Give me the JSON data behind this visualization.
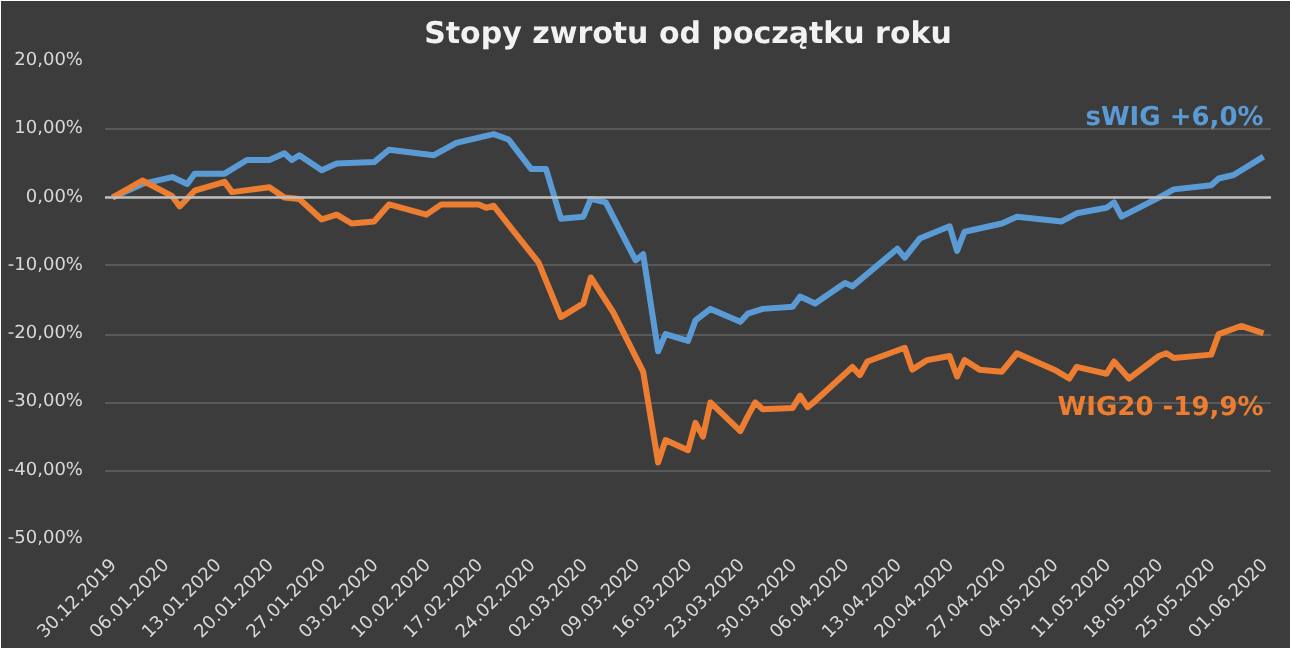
{
  "chart_data": {
    "type": "line",
    "title": "Stopy zwrotu od początku roku",
    "legend": false,
    "grid": "y",
    "marker": "none",
    "line_style": "solid",
    "xlim": [
      "2019-12-29",
      "2020-06-02"
    ],
    "xticks": [
      {
        "value": "2019-12-30",
        "label": "30.12.2019"
      },
      {
        "value": "2020-01-06",
        "label": "06.01.2020"
      },
      {
        "value": "2020-01-13",
        "label": "13.01.2020"
      },
      {
        "value": "2020-01-20",
        "label": "20.01.2020"
      },
      {
        "value": "2020-01-27",
        "label": "27.01.2020"
      },
      {
        "value": "2020-02-03",
        "label": "03.02.2020"
      },
      {
        "value": "2020-02-10",
        "label": "10.02.2020"
      },
      {
        "value": "2020-02-17",
        "label": "17.02.2020"
      },
      {
        "value": "2020-02-24",
        "label": "24.02.2020"
      },
      {
        "value": "2020-03-02",
        "label": "02.03.2020"
      },
      {
        "value": "2020-03-09",
        "label": "09.03.2020"
      },
      {
        "value": "2020-03-16",
        "label": "16.03.2020"
      },
      {
        "value": "2020-03-23",
        "label": "23.03.2020"
      },
      {
        "value": "2020-03-30",
        "label": "30.03.2020"
      },
      {
        "value": "2020-04-06",
        "label": "06.04.2020"
      },
      {
        "value": "2020-04-13",
        "label": "13.04.2020"
      },
      {
        "value": "2020-04-20",
        "label": "20.04.2020"
      },
      {
        "value": "2020-04-27",
        "label": "27.04.2020"
      },
      {
        "value": "2020-05-04",
        "label": "04.05.2020"
      },
      {
        "value": "2020-05-11",
        "label": "11.05.2020"
      },
      {
        "value": "2020-05-18",
        "label": "18.05.2020"
      },
      {
        "value": "2020-05-25",
        "label": "25.05.2020"
      },
      {
        "value": "2020-06-01",
        "label": "01.06.2020"
      }
    ],
    "ylim": [
      -50,
      20
    ],
    "yticks": [
      {
        "value": -50,
        "label": "-50,00%"
      },
      {
        "value": -40,
        "label": "-40,00%"
      },
      {
        "value": -30,
        "label": "-30,00%"
      },
      {
        "value": -20,
        "label": "-20,00%"
      },
      {
        "value": -10,
        "label": "-10,00%"
      },
      {
        "value": 0,
        "label": "0,00%"
      },
      {
        "value": 10,
        "label": "10,00%"
      },
      {
        "value": 20,
        "label": "20,00%"
      }
    ],
    "ref_lines": [
      {
        "axis": "y",
        "value": 0,
        "label": null,
        "color": "#bfbfbf"
      }
    ],
    "series": [
      {
        "name": "sWIG +6,0%",
        "color": "#5b9bd5",
        "x": [
          "2019-12-30",
          "2020-01-03",
          "2020-01-07",
          "2020-01-09",
          "2020-01-10",
          "2020-01-14",
          "2020-01-17",
          "2020-01-20",
          "2020-01-22",
          "2020-01-23",
          "2020-01-24",
          "2020-01-27",
          "2020-01-29",
          "2020-02-03",
          "2020-02-05",
          "2020-02-11",
          "2020-02-14",
          "2020-02-19",
          "2020-02-21",
          "2020-02-24",
          "2020-02-26",
          "2020-02-28",
          "2020-03-02",
          "2020-03-03",
          "2020-03-05",
          "2020-03-09",
          "2020-03-10",
          "2020-03-12",
          "2020-03-13",
          "2020-03-16",
          "2020-03-17",
          "2020-03-19",
          "2020-03-23",
          "2020-03-24",
          "2020-03-26",
          "2020-03-30",
          "2020-03-31",
          "2020-04-02",
          "2020-04-06",
          "2020-04-07",
          "2020-04-13",
          "2020-04-14",
          "2020-04-16",
          "2020-04-20",
          "2020-04-21",
          "2020-04-22",
          "2020-04-27",
          "2020-04-29",
          "2020-05-05",
          "2020-05-07",
          "2020-05-11",
          "2020-05-12",
          "2020-05-13",
          "2020-05-18",
          "2020-05-20",
          "2020-05-25",
          "2020-05-26",
          "2020-05-28",
          "2020-06-01"
        ],
        "values": [
          0,
          2.0,
          3.0,
          2.0,
          3.5,
          3.5,
          5.5,
          5.5,
          6.5,
          5.5,
          6.2,
          4.0,
          5.0,
          5.2,
          7.0,
          6.2,
          8.0,
          9.3,
          8.5,
          4.2,
          4.2,
          -3.1,
          -2.8,
          -0.2,
          -0.7,
          -9.2,
          -8.3,
          -22.5,
          -20.0,
          -21.0,
          -18.0,
          -16.3,
          -18.2,
          -17.0,
          -16.3,
          -16.0,
          -14.5,
          -15.5,
          -12.5,
          -13.0,
          -7.5,
          -8.8,
          -6.0,
          -4.2,
          -7.8,
          -5.0,
          -3.8,
          -2.8,
          -3.5,
          -2.3,
          -1.5,
          -0.7,
          -2.8,
          0,
          1.2,
          1.8,
          2.8,
          3.3,
          6.0
        ]
      },
      {
        "name": "WIG20 -19,9%",
        "color": "#ed7d31",
        "x": [
          "2019-12-30",
          "2020-01-03",
          "2020-01-07",
          "2020-01-08",
          "2020-01-10",
          "2020-01-14",
          "2020-01-15",
          "2020-01-20",
          "2020-01-22",
          "2020-01-24",
          "2020-01-27",
          "2020-01-29",
          "2020-01-31",
          "2020-02-03",
          "2020-02-05",
          "2020-02-10",
          "2020-02-12",
          "2020-02-17",
          "2020-02-18",
          "2020-02-19",
          "2020-02-21",
          "2020-02-25",
          "2020-02-28",
          "2020-03-02",
          "2020-03-03",
          "2020-03-06",
          "2020-03-10",
          "2020-03-12",
          "2020-03-13",
          "2020-03-16",
          "2020-03-17",
          "2020-03-18",
          "2020-03-19",
          "2020-03-23",
          "2020-03-24",
          "2020-03-25",
          "2020-03-26",
          "2020-03-30",
          "2020-03-31",
          "2020-04-01",
          "2020-04-02",
          "2020-04-07",
          "2020-04-08",
          "2020-04-09",
          "2020-04-14",
          "2020-04-15",
          "2020-04-17",
          "2020-04-20",
          "2020-04-21",
          "2020-04-22",
          "2020-04-24",
          "2020-04-27",
          "2020-04-29",
          "2020-05-04",
          "2020-05-06",
          "2020-05-07",
          "2020-05-11",
          "2020-05-12",
          "2020-05-14",
          "2020-05-18",
          "2020-05-19",
          "2020-05-20",
          "2020-05-25",
          "2020-05-26",
          "2020-05-29",
          "2020-06-01"
        ],
        "values": [
          0,
          2.5,
          0.2,
          -1.3,
          1.0,
          2.3,
          0.8,
          1.5,
          0,
          -0.2,
          -3.2,
          -2.5,
          -3.8,
          -3.5,
          -1.0,
          -2.5,
          -1.0,
          -1.0,
          -1.5,
          -1.2,
          -4.0,
          -9.5,
          -17.5,
          -15.5,
          -11.7,
          -16.8,
          -25.5,
          -38.8,
          -35.5,
          -37.0,
          -33.0,
          -35.0,
          -30.0,
          -34.2,
          -32.0,
          -30.0,
          -31.0,
          -30.8,
          -29.0,
          -30.7,
          -29.8,
          -24.8,
          -26.0,
          -24.0,
          -22.0,
          -25.2,
          -23.8,
          -23.2,
          -26.2,
          -23.8,
          -25.2,
          -25.5,
          -22.8,
          -25.2,
          -26.5,
          -24.8,
          -25.8,
          -24.0,
          -26.5,
          -23.2,
          -22.8,
          -23.5,
          -23.0,
          -20.0,
          -18.8,
          -19.9
        ]
      }
    ]
  }
}
